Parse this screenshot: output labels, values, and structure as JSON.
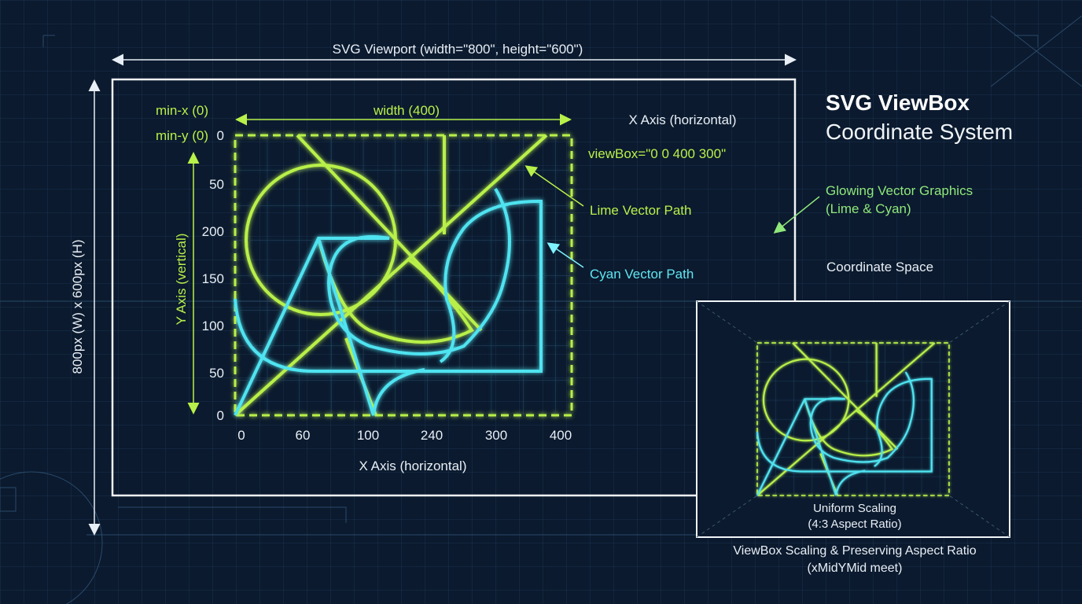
{
  "header": {
    "title": "SVG ViewBox",
    "subtitle": "Coordinate System"
  },
  "viewport": {
    "width_label": "SVG Viewport (width=\"800\", height=\"600\")",
    "size_label": "800px (W) x 600px (H)"
  },
  "viewbox": {
    "min_x": "min-x (0)",
    "min_y": "min-y (0)",
    "width": "width (400)",
    "attribute": "viewBox=\"0 0 400 300\"",
    "x_axis_top": "X Axis (horizontal)",
    "x_axis_bottom": "X Axis (horizontal)",
    "y_axis": "Y Axis (vertical)",
    "y_labels": [
      "0",
      "50",
      "200",
      "150",
      "100",
      "50",
      "0"
    ],
    "x_labels": [
      "0",
      "60",
      "100",
      "240",
      "300",
      "400"
    ]
  },
  "annotations": {
    "lime": "Lime Vector Path",
    "cyan": "Cyan Vector Path",
    "glow": [
      "Glowing Vector Graphics",
      "(Lime & Cyan)"
    ],
    "space": "Coordinate Space"
  },
  "inset": {
    "caption": [
      "Uniform Scaling",
      "(4:3 Aspect Ratio)"
    ],
    "footer": [
      "ViewBox Scaling & Preserving Aspect Ratio",
      "(xMidYMid meet)"
    ]
  }
}
